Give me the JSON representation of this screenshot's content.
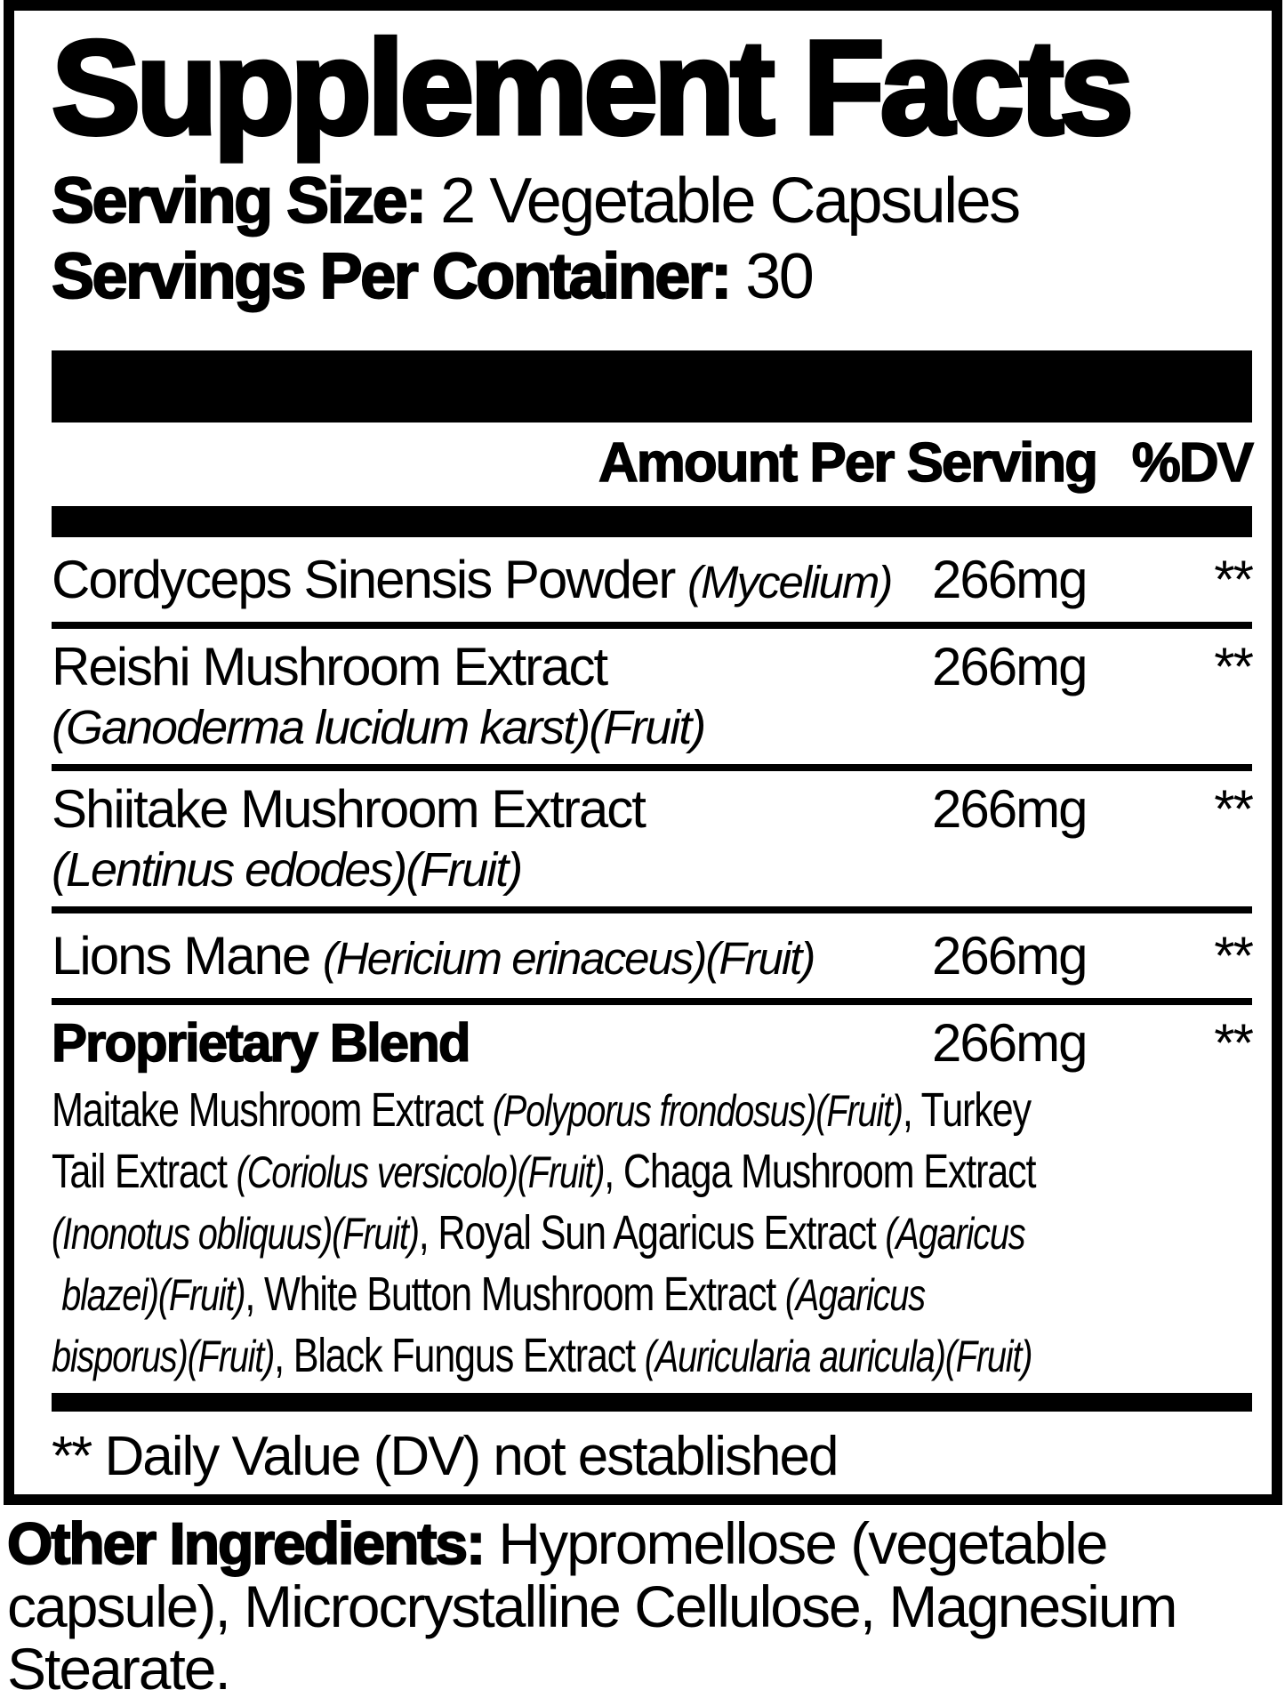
{
  "colors": {
    "ink": "#000000",
    "paper": "#ffffff"
  },
  "label": {
    "title": "Supplement Facts",
    "serving_size_label": "Serving Size:",
    "serving_size_value": " 2 Vegetable Capsules",
    "servings_per_container_label": "Servings Per Container:",
    "servings_per_container_value": " 30",
    "header": {
      "amount": "Amount Per Serving",
      "dv": "%DV"
    },
    "rows": [
      {
        "name": "Cordyceps Sinensis Powder ",
        "latin": "(Mycelium)",
        "amount": "266mg",
        "dv": "**"
      },
      {
        "name": "Reishi Mushroom Extract",
        "latin": "(Ganoderma lucidum karst)(Fruit)",
        "amount": "266mg",
        "dv": "**"
      },
      {
        "name": "Shiitake Mushroom Extract",
        "latin": "(Lentinus edodes)(Fruit)",
        "amount": "266mg",
        "dv": "**"
      },
      {
        "name": "Lions Mane ",
        "latin": "(Hericium erinaceus)(Fruit)",
        "amount": "266mg",
        "dv": "**"
      },
      {
        "name": "Proprietary Blend",
        "amount": "266mg",
        "dv": "**",
        "blend_lines": [
          [
            "Maitake Mushroom Extract ",
            "(Polyporus frondosus)(Fruit)",
            ", Turkey"
          ],
          [
            "Tail Extract ",
            "(Coriolus versicolo)(Fruit)",
            ", Chaga Mushroom Extract"
          ],
          [
            "(Inonotus obliquus)(Fruit)",
            ", Royal Sun Agaricus Extract ",
            "(Agaricus"
          ],
          [
            "blazei)(Fruit)",
            ", White Button Mushroom Extract ",
            "(Agaricus"
          ],
          [
            "bisporus)(Fruit)",
            ", Black Fungus Extract ",
            "(Auricularia auricula)(Fruit)"
          ]
        ]
      }
    ],
    "footnote": "** Daily Value (DV) not established"
  },
  "other_ingredients": {
    "label": "Other Ingredients:",
    "text": " Hypromellose (vegetable capsule), Microcrystalline Cellulose, Magnesium Stearate."
  }
}
